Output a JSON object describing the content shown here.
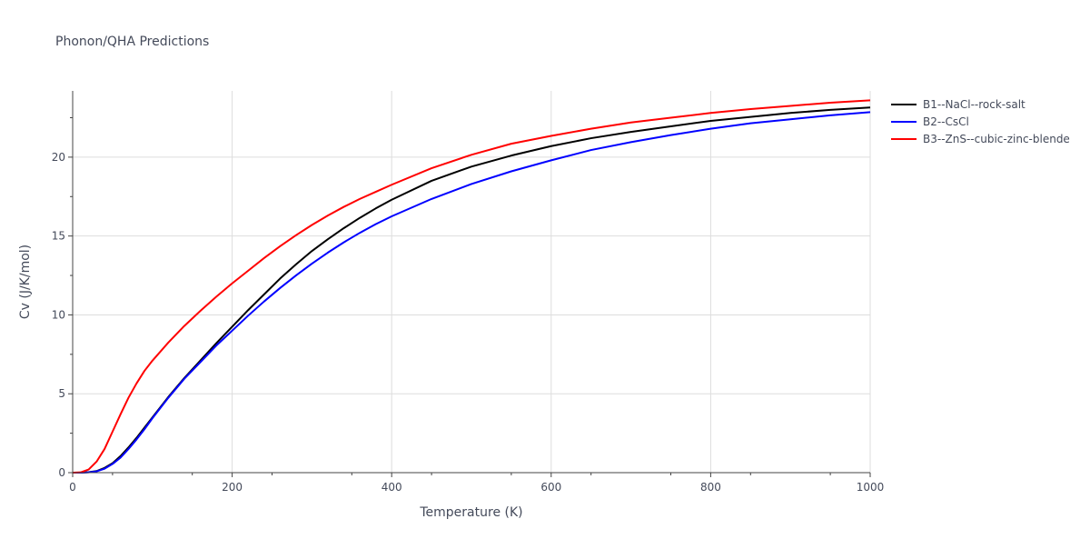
{
  "chart_data": {
    "type": "line",
    "title": "Phonon/QHA Predictions",
    "xlabel": "Temperature (K)",
    "ylabel": "Cv (J/K/mol)",
    "xlim": [
      0,
      1000
    ],
    "ylim": [
      0,
      24.2
    ],
    "x_ticks": [
      0,
      200,
      400,
      600,
      800,
      1000
    ],
    "y_ticks": [
      0,
      5,
      10,
      15,
      20
    ],
    "grid": true,
    "legend_position": "top-right",
    "x": [
      0,
      10,
      20,
      30,
      40,
      50,
      60,
      70,
      80,
      90,
      100,
      120,
      140,
      160,
      180,
      200,
      220,
      240,
      260,
      280,
      300,
      320,
      340,
      360,
      380,
      400,
      450,
      500,
      550,
      600,
      650,
      700,
      750,
      800,
      850,
      900,
      950,
      1000
    ],
    "series": [
      {
        "name": "B1--NaCl--rock-salt",
        "color": "#000000",
        "values": [
          0,
          0.0,
          0.03,
          0.1,
          0.3,
          0.6,
          1.05,
          1.6,
          2.2,
          2.85,
          3.5,
          4.8,
          6.0,
          7.1,
          8.2,
          9.25,
          10.3,
          11.3,
          12.3,
          13.2,
          14.05,
          14.8,
          15.5,
          16.15,
          16.75,
          17.3,
          18.5,
          19.4,
          20.1,
          20.7,
          21.2,
          21.6,
          21.95,
          22.3,
          22.55,
          22.8,
          23.0,
          23.15
        ]
      },
      {
        "name": "B2--CsCl",
        "color": "#0000ff",
        "values": [
          0,
          0.0,
          0.02,
          0.08,
          0.25,
          0.55,
          0.95,
          1.5,
          2.1,
          2.75,
          3.45,
          4.75,
          5.95,
          7.0,
          8.05,
          9.0,
          9.95,
          10.85,
          11.7,
          12.5,
          13.25,
          13.95,
          14.6,
          15.2,
          15.75,
          16.25,
          17.35,
          18.3,
          19.1,
          19.8,
          20.45,
          20.95,
          21.4,
          21.8,
          22.15,
          22.4,
          22.65,
          22.85
        ]
      },
      {
        "name": "B3--ZnS--cubic-zinc-blende",
        "color": "#ff0000",
        "values": [
          0,
          0.02,
          0.2,
          0.7,
          1.5,
          2.6,
          3.7,
          4.75,
          5.65,
          6.45,
          7.1,
          8.25,
          9.3,
          10.25,
          11.15,
          12.0,
          12.8,
          13.6,
          14.35,
          15.05,
          15.7,
          16.3,
          16.85,
          17.35,
          17.8,
          18.25,
          19.3,
          20.15,
          20.85,
          21.35,
          21.8,
          22.2,
          22.5,
          22.8,
          23.05,
          23.25,
          23.45,
          23.6
        ]
      }
    ]
  }
}
